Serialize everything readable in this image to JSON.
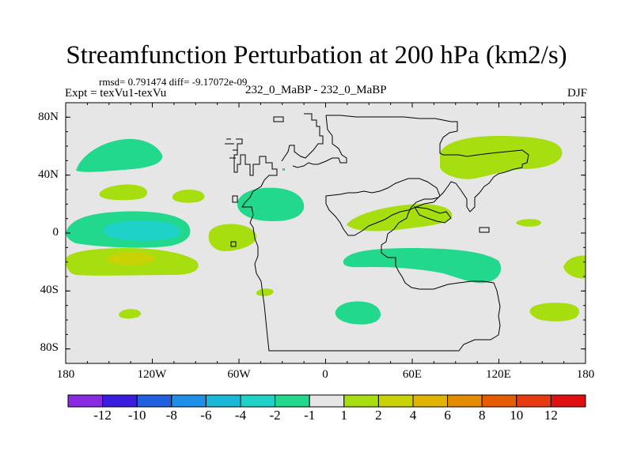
{
  "title": "Streamfunction Perturbation at 200 hPa (km2/s)",
  "stats_line": "rmsd= 0.791474 diff= -9.17072e-09",
  "expt_line": "Expt = texVu1-texVu",
  "center_label": "232_0_MaBP - 232_0_MaBP",
  "season": "DJF",
  "axes": {
    "y_ticks": [
      {
        "value": 80,
        "label": "80N"
      },
      {
        "value": 40,
        "label": "40N"
      },
      {
        "value": 0,
        "label": "0"
      },
      {
        "value": -40,
        "label": "40S"
      },
      {
        "value": -80,
        "label": "80S"
      }
    ],
    "x_ticks": [
      {
        "value": -180,
        "label": "180"
      },
      {
        "value": -120,
        "label": "120W"
      },
      {
        "value": -60,
        "label": "60W"
      },
      {
        "value": 0,
        "label": "0"
      },
      {
        "value": 60,
        "label": "60E"
      },
      {
        "value": 120,
        "label": "120E"
      },
      {
        "value": 180,
        "label": "180"
      }
    ]
  },
  "colorbar": {
    "colors": [
      "#8a2be2",
      "#3a1ce0",
      "#1f5fe0",
      "#1e90e8",
      "#1ab8d8",
      "#1ed2c8",
      "#22d88c",
      "#e6e6e6",
      "#a6de10",
      "#c8d205",
      "#e0b400",
      "#e48c00",
      "#e85c00",
      "#e83a10",
      "#e01010"
    ],
    "labels": [
      "-12",
      "-10",
      "-8",
      "-6",
      "-4",
      "-2",
      "-1",
      "1",
      "2",
      "4",
      "6",
      "8",
      "10",
      "12"
    ]
  },
  "colors": {
    "background_field": "#e6e6e6",
    "coast": "#000000"
  }
}
